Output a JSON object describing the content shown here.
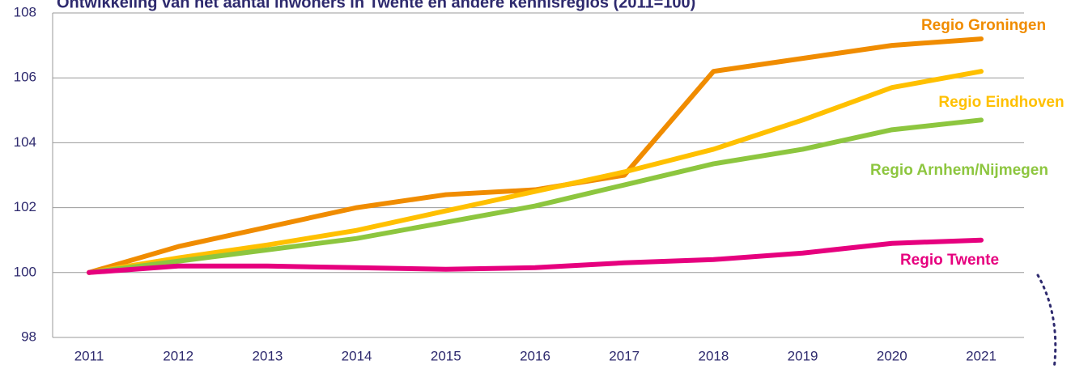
{
  "chart_data": {
    "type": "line",
    "title": "Ontwikkeling van het aantal inwoners in Twente en andere kennisregios (2011=100)",
    "x": [
      "2011",
      "2012",
      "2013",
      "2014",
      "2015",
      "2016",
      "2017",
      "2018",
      "2019",
      "2020",
      "2021"
    ],
    "series": [
      {
        "name": "Regio Groningen",
        "color": "#f08c00",
        "values": [
          100,
          100.8,
          101.4,
          102.0,
          102.4,
          102.55,
          103.0,
          106.2,
          106.6,
          107.0,
          107.2
        ]
      },
      {
        "name": "Regio Eindhoven",
        "color": "#ffc000",
        "values": [
          100,
          100.45,
          100.85,
          101.3,
          101.9,
          102.5,
          103.1,
          103.8,
          104.7,
          105.7,
          106.2
        ]
      },
      {
        "name": "Regio Arnhem/Nijmegen",
        "color": "#8dc63f",
        "values": [
          100,
          100.35,
          100.7,
          101.05,
          101.55,
          102.05,
          102.7,
          103.35,
          103.8,
          104.4,
          104.7
        ]
      },
      {
        "name": "Regio Twente",
        "color": "#e6007e",
        "values": [
          100,
          100.2,
          100.2,
          100.15,
          100.1,
          100.15,
          100.3,
          100.4,
          100.6,
          100.9,
          101.0
        ]
      }
    ],
    "ylim": [
      98,
      108
    ],
    "yticks": [
      98,
      100,
      102,
      104,
      106,
      108
    ],
    "grid": true
  }
}
